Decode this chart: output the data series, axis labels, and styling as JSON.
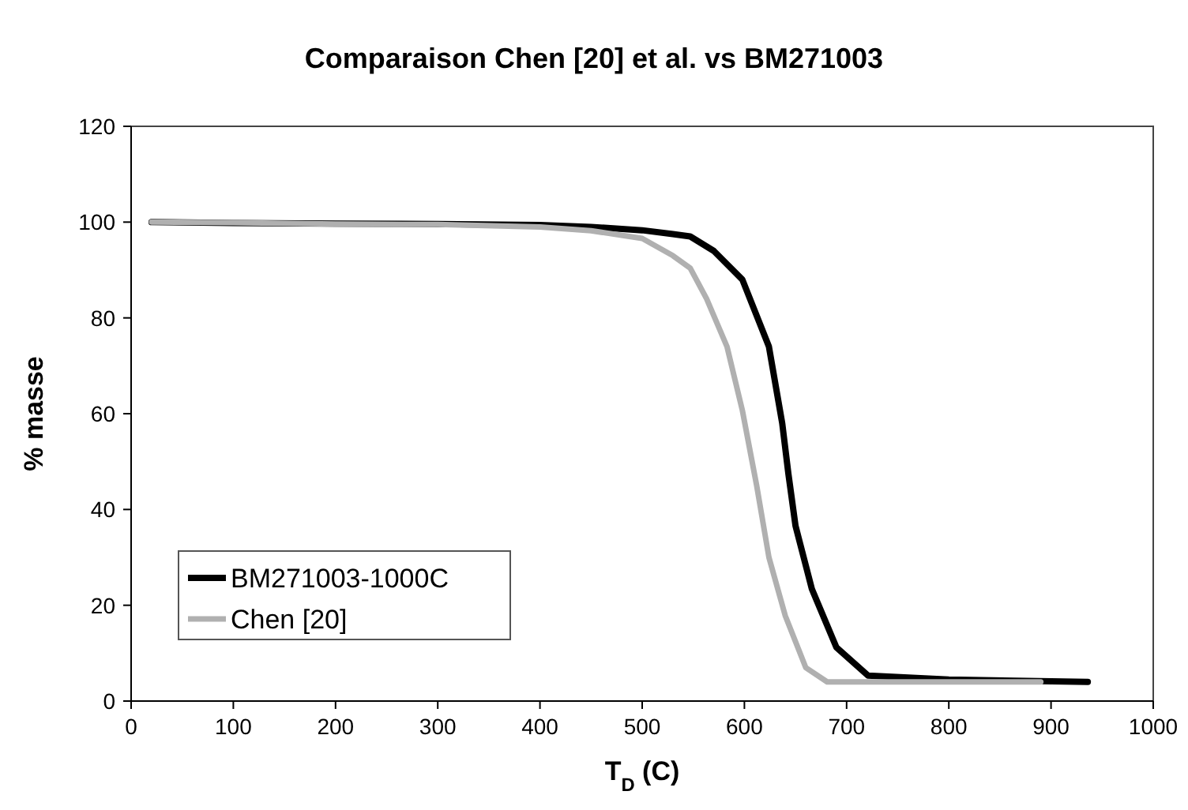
{
  "chart_data": {
    "type": "line",
    "title": "Comparaison Chen [20] et al. vs BM271003",
    "xlabel": "T$_{D}$ (C)",
    "ylabel": "% masse",
    "xlim": [
      0,
      1000
    ],
    "xticks": [
      0,
      100,
      200,
      300,
      400,
      500,
      600,
      700,
      800,
      900,
      1000
    ],
    "ylim": [
      0,
      120
    ],
    "yticks": [
      0,
      20,
      40,
      60,
      80,
      100,
      120
    ],
    "grid": false,
    "legend": "bottom left",
    "marker": "none",
    "line_style": "solid",
    "series": [
      {
        "name": "BM271003-1000C",
        "color": "#000000",
        "x": [
          20,
          100,
          200,
          300,
          400,
          450,
          500,
          530,
          547,
          570,
          598,
          624,
          637,
          643,
          650,
          666,
          690,
          721,
          800,
          936
        ],
        "values": [
          100,
          99.8,
          99.7,
          99.6,
          99.4,
          99,
          98.3,
          97.5,
          97,
          94,
          88,
          74,
          58,
          47.5,
          36.6,
          23.4,
          11.2,
          5.3,
          4.5,
          4
        ]
      },
      {
        "name": "Chen [20]",
        "color": "#b0b0b0",
        "x": [
          20,
          100,
          200,
          300,
          400,
          450,
          500,
          530,
          547,
          563,
          583,
          598,
          612,
          624,
          640,
          660,
          681,
          750,
          890
        ],
        "values": [
          100,
          99.9,
          99.6,
          99.5,
          99,
          98.2,
          96.6,
          93,
          90.4,
          84,
          74,
          60.7,
          45,
          30,
          17.8,
          7,
          4,
          4,
          4
        ]
      }
    ]
  }
}
